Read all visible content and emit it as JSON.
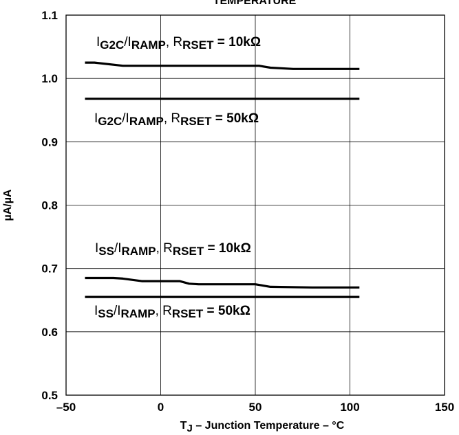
{
  "chart_data": {
    "type": "line",
    "title": "TEMPERATURE",
    "xlabel": {
      "prefix": "T",
      "sub": "J",
      "suffix": " – Junction Temperature – °C"
    },
    "ylabel": "µA/µA",
    "xlim": [
      -50,
      150
    ],
    "ylim": [
      0.5,
      1.1
    ],
    "x_ticks": [
      "–50",
      "0",
      "50",
      "100",
      "150"
    ],
    "x_tick_values": [
      -50,
      0,
      50,
      100,
      150
    ],
    "y_ticks": [
      "0.5",
      "0.6",
      "0.7",
      "0.8",
      "0.9",
      "1.0",
      "1.1"
    ],
    "y_tick_values": [
      0.5,
      0.6,
      0.7,
      0.8,
      0.9,
      1.0,
      1.1
    ],
    "grid": true,
    "series": [
      {
        "label": {
          "i1": "I",
          "s1": "G2C",
          "i2": "/I",
          "s2": "RAMP",
          "r": ", R",
          "s3": "RSET",
          "v": " = 10kΩ"
        },
        "x": [
          -40,
          -35,
          -20,
          0,
          20,
          40,
          52,
          58,
          70,
          90,
          105
        ],
        "y": [
          1.025,
          1.025,
          1.02,
          1.02,
          1.02,
          1.02,
          1.02,
          1.017,
          1.015,
          1.015,
          1.015
        ]
      },
      {
        "label": {
          "i1": "I",
          "s1": "G2C",
          "i2": "/I",
          "s2": "RAMP",
          "r": ", R",
          "s3": "RSET",
          "v": " = 50kΩ"
        },
        "x": [
          -40,
          0,
          50,
          105
        ],
        "y": [
          0.968,
          0.968,
          0.968,
          0.968
        ]
      },
      {
        "label": {
          "i1": "I",
          "s1": "SS",
          "i2": "/I",
          "s2": "RAMP",
          "r": ", R",
          "s3": "RSET",
          "v": " = 10kΩ"
        },
        "x": [
          -40,
          -25,
          -20,
          -10,
          10,
          15,
          20,
          50,
          58,
          80,
          105
        ],
        "y": [
          0.685,
          0.685,
          0.684,
          0.68,
          0.68,
          0.676,
          0.675,
          0.675,
          0.671,
          0.67,
          0.67
        ]
      },
      {
        "label": {
          "i1": "I",
          "s1": "SS",
          "i2": "/I",
          "s2": "RAMP",
          "r": ", R",
          "s3": "RSET",
          "v": " = 50kΩ"
        },
        "x": [
          -40,
          0,
          50,
          105
        ],
        "y": [
          0.655,
          0.655,
          0.655,
          0.655
        ]
      }
    ]
  }
}
